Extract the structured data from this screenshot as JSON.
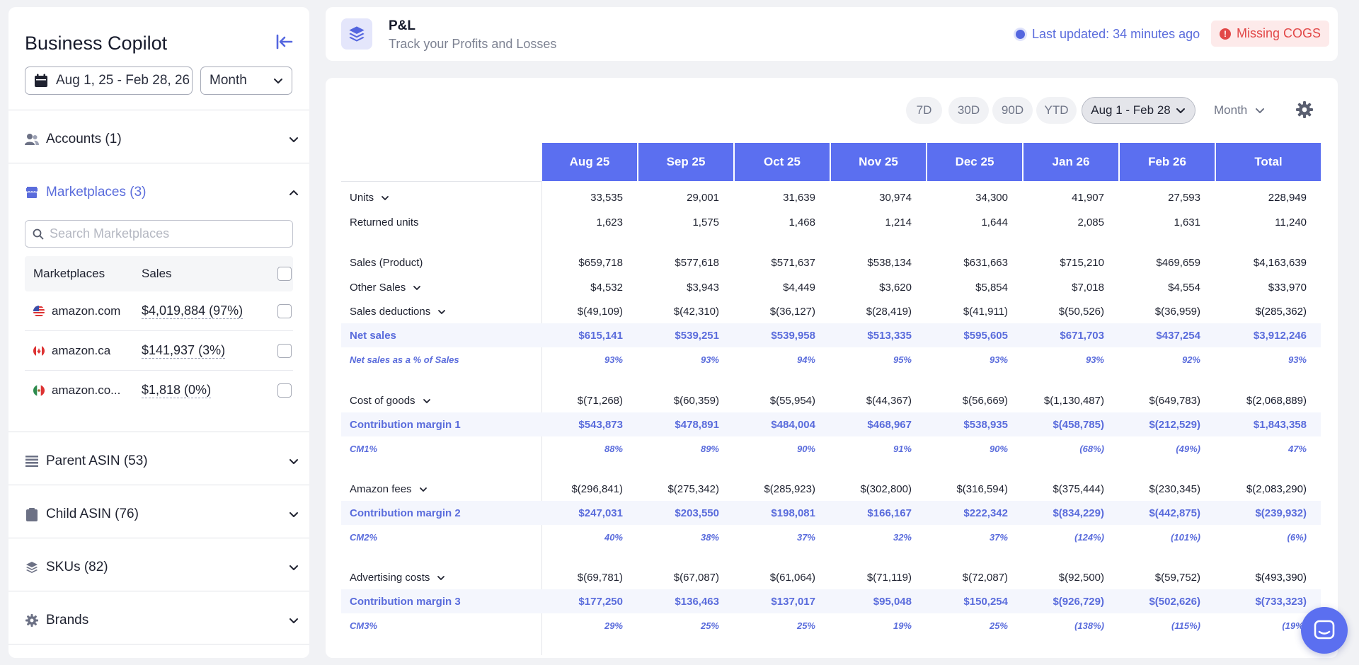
{
  "sidebar": {
    "title": "Business Copilot",
    "date_range": "Aug 1, 25 - Feb 28, 26",
    "period": "Month",
    "sections": [
      {
        "label": "Accounts (1)",
        "icon": "users-icon"
      },
      {
        "label": "Marketplaces (3)",
        "icon": "store-icon"
      },
      {
        "label": "Parent ASIN (53)",
        "icon": "list-icon"
      },
      {
        "label": "Child ASIN (76)",
        "icon": "clipboard-icon"
      },
      {
        "label": "SKUs (82)",
        "icon": "layers-icon"
      },
      {
        "label": "Brands",
        "icon": "gear-icon"
      }
    ],
    "search_placeholder": "Search Marketplaces",
    "mp_headers": {
      "name": "Marketplaces",
      "sales": "Sales"
    },
    "marketplaces": [
      {
        "name": "amazon.com",
        "sales": "$4,019,884 (97%)",
        "flag": "us-flag-icon"
      },
      {
        "name": "amazon.ca",
        "sales": "$141,937 (3%)",
        "flag": "ca-flag-icon"
      },
      {
        "name": "amazon.co...",
        "sales": "$1,818 (0%)",
        "flag": "mx-flag-icon"
      }
    ]
  },
  "header": {
    "title": "P&L",
    "subtitle": "Track your Profits and Losses",
    "last_updated": "Last updated: 34 minutes ago",
    "warning": "Missing COGS"
  },
  "toolbar": {
    "ranges": [
      "7D",
      "30D",
      "90D",
      "YTD"
    ],
    "selected_range": "Aug 1 - Feb 28",
    "period": "Month"
  },
  "table": {
    "columns": [
      "Aug 25",
      "Sep 25",
      "Oct 25",
      "Nov 25",
      "Dec 25",
      "Jan 26",
      "Feb 26",
      "Total"
    ],
    "rows": [
      {
        "label": "Units",
        "dropdown": true,
        "values": [
          "33,535",
          "29,001",
          "31,639",
          "30,974",
          "34,300",
          "41,907",
          "27,593",
          "228,949"
        ]
      },
      {
        "label": "Returned units",
        "values": [
          "1,623",
          "1,575",
          "1,468",
          "1,214",
          "1,644",
          "2,085",
          "1,631",
          "11,240"
        ]
      },
      {
        "label": "Sales (Product)",
        "values": [
          "$659,718",
          "$577,618",
          "$571,637",
          "$538,134",
          "$631,663",
          "$715,210",
          "$469,659",
          "$4,163,639"
        ]
      },
      {
        "label": "Other Sales",
        "dropdown": true,
        "values": [
          "$4,532",
          "$3,943",
          "$4,449",
          "$3,620",
          "$5,854",
          "$7,018",
          "$4,554",
          "$33,970"
        ]
      },
      {
        "label": "Sales deductions",
        "dropdown": true,
        "values": [
          "$(49,109)",
          "$(42,310)",
          "$(36,127)",
          "$(28,419)",
          "$(41,911)",
          "$(50,526)",
          "$(36,959)",
          "$(285,362)"
        ]
      },
      {
        "label": "Net sales",
        "style": "blue",
        "values": [
          "$615,141",
          "$539,251",
          "$539,958",
          "$513,335",
          "$595,605",
          "$671,703",
          "$437,254",
          "$3,912,246"
        ]
      },
      {
        "label": "Net sales as a % of Sales",
        "style": "pct",
        "values": [
          "93%",
          "93%",
          "94%",
          "95%",
          "93%",
          "93%",
          "92%",
          "93%"
        ]
      },
      {
        "label": "Cost of goods",
        "dropdown": true,
        "values": [
          "$(71,268)",
          "$(60,359)",
          "$(55,954)",
          "$(44,367)",
          "$(56,669)",
          "$(1,130,487)",
          "$(649,783)",
          "$(2,068,889)"
        ]
      },
      {
        "label": "Contribution margin 1",
        "style": "blue",
        "values": [
          "$543,873",
          "$478,891",
          "$484,004",
          "$468,967",
          "$538,935",
          "$(458,785)",
          "$(212,529)",
          "$1,843,358"
        ]
      },
      {
        "label": "CM1%",
        "style": "pct",
        "values": [
          "88%",
          "89%",
          "90%",
          "91%",
          "90%",
          "(68%)",
          "(49%)",
          "47%"
        ]
      },
      {
        "label": "Amazon fees",
        "dropdown": true,
        "values": [
          "$(296,841)",
          "$(275,342)",
          "$(285,923)",
          "$(302,800)",
          "$(316,594)",
          "$(375,444)",
          "$(230,345)",
          "$(2,083,290)"
        ]
      },
      {
        "label": "Contribution margin 2",
        "style": "blue",
        "values": [
          "$247,031",
          "$203,550",
          "$198,081",
          "$166,167",
          "$222,342",
          "$(834,229)",
          "$(442,875)",
          "$(239,932)"
        ]
      },
      {
        "label": "CM2%",
        "style": "pct",
        "values": [
          "40%",
          "38%",
          "37%",
          "32%",
          "37%",
          "(124%)",
          "(101%)",
          "(6%)"
        ]
      },
      {
        "label": "Advertising costs",
        "dropdown": true,
        "values": [
          "$(69,781)",
          "$(67,087)",
          "$(61,064)",
          "$(71,119)",
          "$(72,087)",
          "$(92,500)",
          "$(59,752)",
          "$(493,390)"
        ]
      },
      {
        "label": "Contribution margin 3",
        "style": "blue",
        "values": [
          "$177,250",
          "$136,463",
          "$137,017",
          "$95,048",
          "$150,254",
          "$(926,729)",
          "$(502,626)",
          "$(733,323)"
        ]
      },
      {
        "label": "CM3%",
        "style": "pct",
        "values": [
          "29%",
          "25%",
          "25%",
          "19%",
          "25%",
          "(138%)",
          "(115%)",
          "(19%)"
        ]
      }
    ]
  },
  "colors": {
    "accent": "#5b6ff0",
    "accent_text": "#5a6cdc",
    "warning": "#e24848"
  }
}
